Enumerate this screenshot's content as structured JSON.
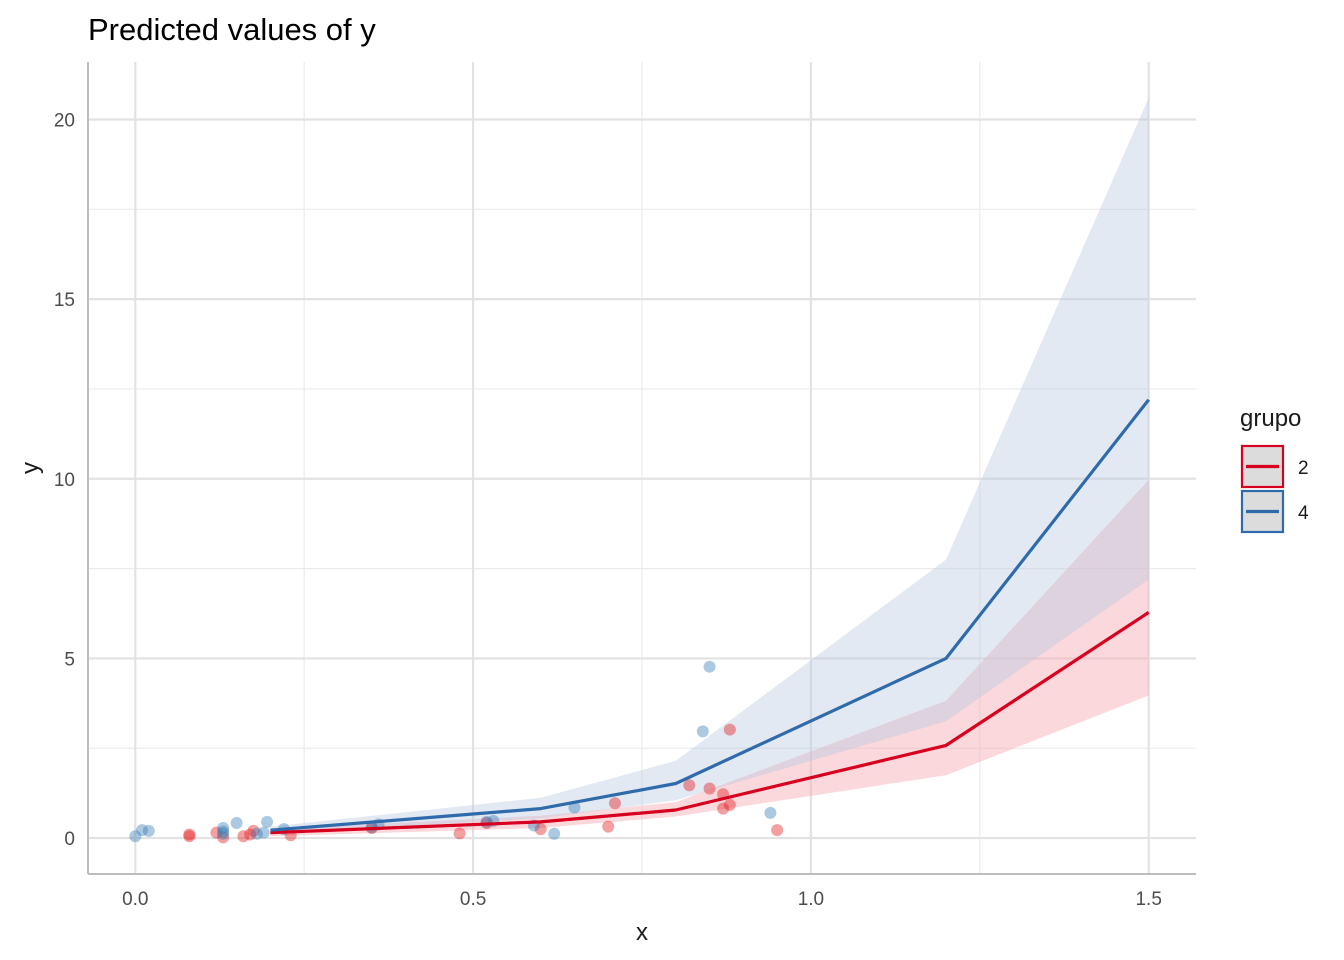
{
  "chart_data": {
    "type": "line",
    "title": "Predicted values of y",
    "xlabel": "x",
    "ylabel": "y",
    "xlim": [
      -0.07,
      1.57
    ],
    "ylim": [
      -1.0,
      21.6
    ],
    "x_ticks": [
      0.0,
      0.5,
      1.0,
      1.5
    ],
    "x_tick_labels": [
      "0.0",
      "0.5",
      "1.0",
      "1.5"
    ],
    "y_ticks": [
      0,
      5,
      10,
      15,
      20
    ],
    "y_tick_labels": [
      "0",
      "5",
      "10",
      "15",
      "20"
    ],
    "grid": true,
    "legend": {
      "title": "grupo",
      "position": "right"
    },
    "series": [
      {
        "name": "2",
        "color": "#E41A1C",
        "line_color": "#D7001F",
        "x": [
          0.2,
          0.6,
          0.8,
          1.2,
          1.5
        ],
        "y": [
          0.15,
          0.45,
          0.78,
          2.58,
          6.28
        ],
        "ci_low": [
          0.05,
          0.28,
          0.6,
          1.75,
          3.97
        ],
        "ci_high": [
          0.25,
          0.62,
          1.0,
          3.82,
          9.97
        ],
        "points": [
          [
            0.08,
            0.1
          ],
          [
            0.08,
            0.05
          ],
          [
            0.12,
            0.15
          ],
          [
            0.13,
            0.02
          ],
          [
            0.16,
            0.05
          ],
          [
            0.17,
            0.1
          ],
          [
            0.175,
            0.2
          ],
          [
            0.23,
            0.08
          ],
          [
            0.35,
            0.28
          ],
          [
            0.48,
            0.13
          ],
          [
            0.52,
            0.42
          ],
          [
            0.6,
            0.25
          ],
          [
            0.7,
            0.32
          ],
          [
            0.71,
            0.97
          ],
          [
            0.82,
            1.47
          ],
          [
            0.85,
            1.38
          ],
          [
            0.87,
            0.82
          ],
          [
            0.87,
            1.22
          ],
          [
            0.88,
            0.92
          ],
          [
            0.88,
            3.02
          ],
          [
            0.95,
            0.22
          ]
        ]
      },
      {
        "name": "4",
        "color": "#377EB8",
        "line_color": "#2F6BAA",
        "x": [
          0.2,
          0.6,
          0.8,
          1.2,
          1.5
        ],
        "y": [
          0.22,
          0.82,
          1.52,
          5.0,
          12.2
        ],
        "ci_low": [
          0.12,
          0.55,
          1.05,
          3.25,
          7.2
        ],
        "ci_high": [
          0.32,
          1.12,
          2.15,
          7.75,
          20.6
        ],
        "points": [
          [
            0.0,
            0.05
          ],
          [
            0.01,
            0.22
          ],
          [
            0.02,
            0.2
          ],
          [
            0.13,
            0.28
          ],
          [
            0.13,
            0.18
          ],
          [
            0.13,
            0.12
          ],
          [
            0.15,
            0.42
          ],
          [
            0.18,
            0.12
          ],
          [
            0.19,
            0.15
          ],
          [
            0.195,
            0.45
          ],
          [
            0.22,
            0.25
          ],
          [
            0.35,
            0.3
          ],
          [
            0.36,
            0.38
          ],
          [
            0.52,
            0.45
          ],
          [
            0.53,
            0.48
          ],
          [
            0.59,
            0.35
          ],
          [
            0.62,
            0.12
          ],
          [
            0.65,
            0.85
          ],
          [
            0.84,
            2.97
          ],
          [
            0.85,
            4.77
          ],
          [
            0.94,
            0.7
          ]
        ]
      }
    ]
  }
}
